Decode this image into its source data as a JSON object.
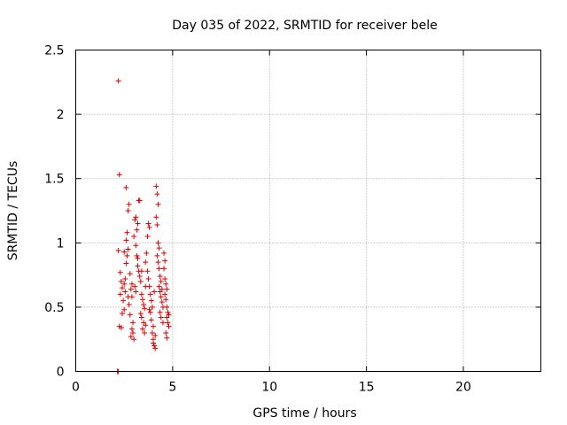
{
  "chart_data": {
    "type": "scatter",
    "title": "Day 035 of 2022, SRMTID for receiver bele",
    "xlabel": "GPS time / hours",
    "ylabel": "SRMTID / TECUs",
    "xlim": [
      0,
      24
    ],
    "ylim": [
      0,
      2.5
    ],
    "xticks": [
      0,
      5,
      10,
      15,
      20
    ],
    "xtick_labels": [
      "0",
      "5",
      "10",
      "15",
      "20"
    ],
    "yticks": [
      0,
      0.5,
      1,
      1.5,
      2,
      2.5
    ],
    "ytick_labels": [
      "0",
      "0.5",
      "1",
      "1.5",
      "2",
      "2.5"
    ],
    "grid": true,
    "marker": "+",
    "series": [
      {
        "name": "SRMTID",
        "color": "#e00000",
        "points": [
          [
            2.2,
            2.26
          ],
          [
            2.25,
            1.53
          ],
          [
            2.6,
            1.43
          ],
          [
            2.15,
            0.0
          ],
          [
            2.2,
            0.0
          ],
          [
            2.2,
            0.94
          ],
          [
            2.3,
            0.77
          ],
          [
            2.35,
            0.7
          ],
          [
            2.4,
            0.65
          ],
          [
            2.3,
            0.6
          ],
          [
            2.45,
            0.55
          ],
          [
            2.5,
            0.48
          ],
          [
            2.4,
            0.45
          ],
          [
            2.35,
            0.34
          ],
          [
            2.25,
            0.35
          ],
          [
            2.55,
            0.72
          ],
          [
            2.6,
            0.84
          ],
          [
            2.65,
            0.9
          ],
          [
            2.7,
            0.95
          ],
          [
            2.6,
            1.02
          ],
          [
            2.65,
            1.08
          ],
          [
            2.7,
            1.25
          ],
          [
            2.75,
            1.3
          ],
          [
            2.55,
            0.62
          ],
          [
            2.5,
            0.68
          ],
          [
            2.8,
            0.76
          ],
          [
            2.85,
            0.64
          ],
          [
            2.9,
            0.58
          ],
          [
            2.75,
            0.52
          ],
          [
            2.8,
            0.44
          ],
          [
            2.95,
            0.38
          ],
          [
            2.9,
            0.33
          ],
          [
            2.85,
            0.27
          ],
          [
            3.0,
            0.25
          ],
          [
            2.95,
            0.3
          ],
          [
            3.0,
            1.05
          ],
          [
            3.05,
            1.18
          ],
          [
            3.1,
            1.2
          ],
          [
            3.15,
            1.1
          ],
          [
            3.2,
            1.15
          ],
          [
            3.25,
            1.33
          ],
          [
            3.3,
            1.33
          ],
          [
            3.1,
            0.98
          ],
          [
            3.15,
            0.9
          ],
          [
            3.2,
            0.82
          ],
          [
            3.25,
            0.78
          ],
          [
            3.3,
            0.74
          ],
          [
            3.35,
            0.7
          ],
          [
            3.05,
            0.66
          ],
          [
            3.1,
            0.62
          ],
          [
            3.4,
            0.6
          ],
          [
            3.45,
            0.56
          ],
          [
            3.5,
            0.52
          ],
          [
            3.55,
            0.49
          ],
          [
            3.35,
            0.45
          ],
          [
            3.4,
            0.42
          ],
          [
            3.5,
            0.38
          ],
          [
            3.6,
            0.36
          ],
          [
            3.45,
            0.33
          ],
          [
            3.55,
            0.3
          ],
          [
            3.6,
            0.85
          ],
          [
            3.65,
            0.92
          ],
          [
            3.7,
            1.05
          ],
          [
            3.75,
            1.15
          ],
          [
            3.8,
            1.12
          ],
          [
            3.7,
            0.78
          ],
          [
            3.75,
            0.72
          ],
          [
            3.8,
            0.66
          ],
          [
            3.85,
            0.6
          ],
          [
            3.9,
            0.55
          ],
          [
            3.95,
            0.5
          ],
          [
            3.85,
            0.46
          ],
          [
            3.9,
            0.4
          ],
          [
            4.0,
            0.35
          ],
          [
            3.95,
            0.3
          ],
          [
            4.0,
            0.25
          ],
          [
            4.05,
            0.2
          ],
          [
            4.1,
            0.18
          ],
          [
            4.0,
            0.22
          ],
          [
            4.1,
            0.28
          ],
          [
            4.15,
            1.44
          ],
          [
            4.2,
            1.38
          ],
          [
            4.25,
            1.3
          ],
          [
            4.15,
            1.2
          ],
          [
            4.2,
            1.14
          ],
          [
            4.25,
            1.0
          ],
          [
            4.3,
            0.96
          ],
          [
            4.2,
            0.9
          ],
          [
            4.25,
            0.85
          ],
          [
            4.3,
            0.8
          ],
          [
            4.35,
            0.74
          ],
          [
            4.4,
            0.7
          ],
          [
            4.3,
            0.66
          ],
          [
            4.35,
            0.62
          ],
          [
            4.4,
            0.58
          ],
          [
            4.45,
            0.54
          ],
          [
            4.5,
            0.5
          ],
          [
            4.35,
            0.46
          ],
          [
            4.4,
            0.42
          ],
          [
            4.5,
            0.38
          ],
          [
            4.55,
            0.92
          ],
          [
            4.6,
            0.86
          ],
          [
            4.55,
            0.8
          ],
          [
            4.6,
            0.72
          ],
          [
            4.65,
            0.68
          ],
          [
            4.7,
            0.64
          ],
          [
            4.6,
            0.6
          ],
          [
            4.65,
            0.56
          ],
          [
            4.7,
            0.5
          ],
          [
            4.75,
            0.46
          ],
          [
            4.7,
            0.42
          ],
          [
            4.75,
            0.38
          ],
          [
            4.8,
            0.35
          ],
          [
            4.65,
            0.3
          ],
          [
            4.7,
            0.26
          ],
          [
            2.5,
            0.93
          ],
          [
            2.7,
            0.58
          ],
          [
            2.9,
            0.68
          ],
          [
            3.2,
            0.88
          ],
          [
            3.4,
            0.78
          ],
          [
            3.6,
            0.66
          ],
          [
            3.8,
            0.48
          ],
          [
            4.05,
            0.62
          ],
          [
            4.45,
            0.64
          ],
          [
            4.8,
            0.44
          ]
        ]
      }
    ]
  }
}
